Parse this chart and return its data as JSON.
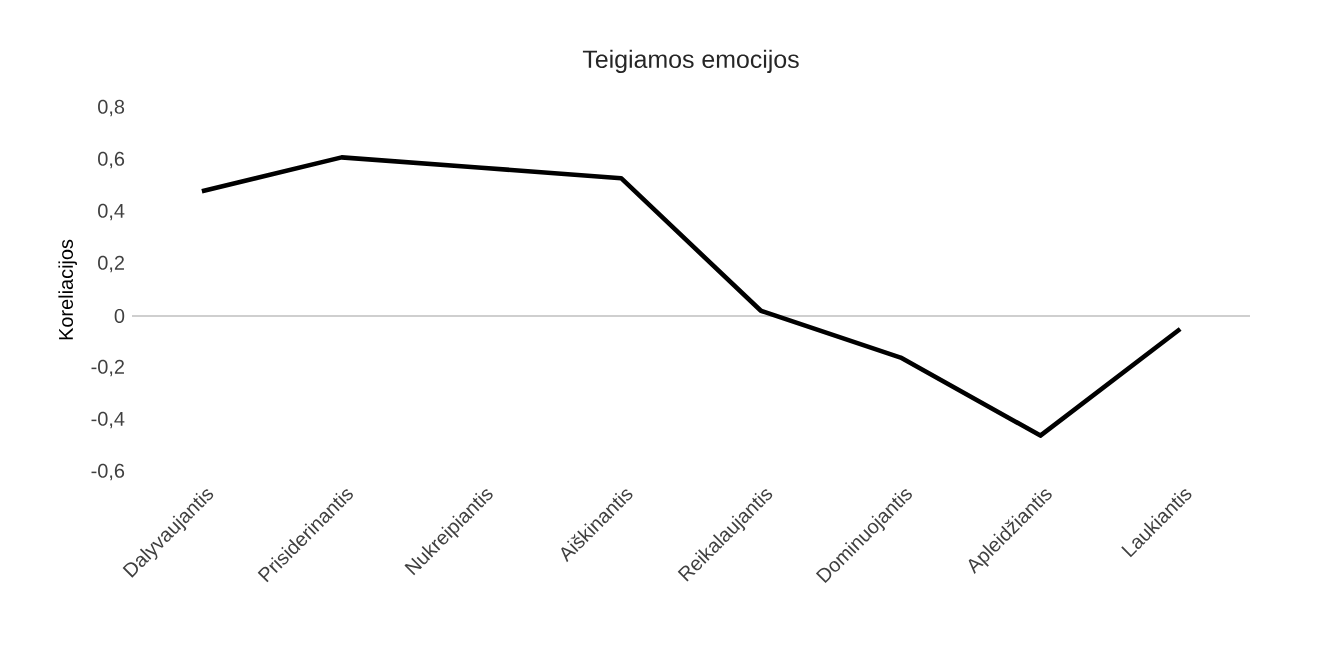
{
  "chart_data": {
    "type": "line",
    "title": "Teigiamos emocijos",
    "ylabel": "Koreliacijos",
    "categories": [
      "Dalyvaujantis",
      "Prisiderinantis",
      "Nukreipiantis",
      "Aiškinantis",
      "Reikalaujantis",
      "Dominuojantis",
      "Apleidžiantis",
      "Laukiantis"
    ],
    "values": [
      0.48,
      0.61,
      0.57,
      0.53,
      0.02,
      -0.16,
      -0.46,
      -0.05
    ],
    "color": "#000000",
    "ylim": [
      -0.6,
      0.8
    ],
    "yticks": [
      {
        "value": -0.6,
        "label": "-0,6"
      },
      {
        "value": -0.4,
        "label": "-0,4"
      },
      {
        "value": -0.2,
        "label": "-0,2"
      },
      0,
      {
        "value": 0.2,
        "label": "0,2"
      },
      {
        "value": 0.4,
        "label": "0,4"
      },
      {
        "value": 0.6,
        "label": "0,6"
      },
      {
        "value": 0.8,
        "label": "0,8"
      }
    ],
    "marker": "none"
  }
}
